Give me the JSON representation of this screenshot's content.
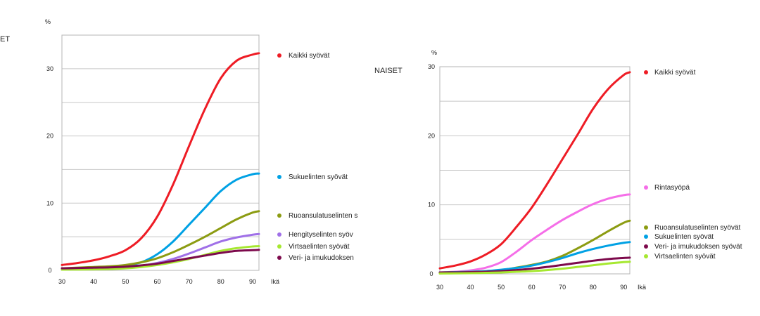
{
  "labels": {
    "left_title": "ET",
    "right_title": "NAISET"
  },
  "chart_data": [
    {
      "type": "line",
      "title": "ET",
      "xlabel": "Ikä",
      "ylabel": "%",
      "xlim": [
        30,
        92
      ],
      "ylim": [
        0,
        35
      ],
      "xticks": [
        "30",
        "40",
        "50",
        "60",
        "70",
        "80",
        "90"
      ],
      "yticks": [
        "0",
        "10",
        "20",
        "30"
      ],
      "grid": true,
      "legend_position": "right",
      "x": [
        30,
        35,
        40,
        45,
        50,
        55,
        60,
        65,
        70,
        75,
        80,
        85,
        90,
        92
      ],
      "series": [
        {
          "name": "Kaikki syövät",
          "color": "#ee1c25",
          "values": [
            0.8,
            1.1,
            1.5,
            2.1,
            3.0,
            4.8,
            8.0,
            12.8,
            18.5,
            24.0,
            28.6,
            31.2,
            32.1,
            32.3
          ]
        },
        {
          "name": "Sukuelinten syövät",
          "color": "#00a1e4",
          "values": [
            0.2,
            0.3,
            0.4,
            0.5,
            0.7,
            1.2,
            2.4,
            4.3,
            6.8,
            9.3,
            11.8,
            13.5,
            14.3,
            14.4
          ]
        },
        {
          "name": "Ruoansulatuselinten s",
          "color": "#8c9c12",
          "values": [
            0.3,
            0.4,
            0.5,
            0.6,
            0.8,
            1.2,
            1.8,
            2.7,
            3.8,
            5.0,
            6.3,
            7.6,
            8.6,
            8.8
          ]
        },
        {
          "name": "Hengityselinten syöv",
          "color": "#a070e8",
          "values": [
            0.1,
            0.15,
            0.2,
            0.3,
            0.45,
            0.7,
            1.1,
            1.7,
            2.5,
            3.4,
            4.3,
            4.9,
            5.3,
            5.4
          ]
        },
        {
          "name": "Virtsaelinten syövät",
          "color": "#a6e830",
          "values": [
            0.1,
            0.12,
            0.15,
            0.2,
            0.3,
            0.5,
            0.8,
            1.2,
            1.7,
            2.3,
            2.9,
            3.3,
            3.55,
            3.6
          ]
        },
        {
          "name": "Veri- ja imukudoksen",
          "color": "#7d0a4c",
          "values": [
            0.3,
            0.35,
            0.4,
            0.45,
            0.55,
            0.75,
            1.0,
            1.4,
            1.8,
            2.2,
            2.6,
            2.9,
            3.0,
            3.05
          ]
        }
      ]
    },
    {
      "type": "line",
      "title": "NAISET",
      "xlabel": "Ikä",
      "ylabel": "%",
      "xlim": [
        30,
        92
      ],
      "ylim": [
        0,
        30
      ],
      "xticks": [
        "30",
        "40",
        "50",
        "60",
        "70",
        "80",
        "90"
      ],
      "yticks": [
        "0",
        "10",
        "20",
        "30"
      ],
      "grid": true,
      "legend_position": "right",
      "x": [
        30,
        35,
        40,
        45,
        50,
        55,
        60,
        65,
        70,
        75,
        80,
        85,
        90,
        92
      ],
      "series": [
        {
          "name": "Kaikki syövät",
          "color": "#ee1c25",
          "values": [
            0.8,
            1.2,
            1.8,
            2.8,
            4.3,
            6.8,
            9.6,
            13.0,
            16.6,
            20.2,
            23.9,
            26.8,
            28.8,
            29.2
          ]
        },
        {
          "name": "Rintasyöpä",
          "color": "#f56ee8",
          "values": [
            0.2,
            0.3,
            0.5,
            0.9,
            1.7,
            3.2,
            4.9,
            6.4,
            7.8,
            9.0,
            10.1,
            10.9,
            11.4,
            11.5
          ]
        },
        {
          "name": "Ruoansulatuselinten syövät",
          "color": "#8c9c12",
          "values": [
            0.2,
            0.25,
            0.3,
            0.4,
            0.55,
            0.9,
            1.3,
            1.8,
            2.6,
            3.7,
            4.9,
            6.2,
            7.4,
            7.7
          ]
        },
        {
          "name": "Sukuelinten syövät",
          "color": "#00a1e4",
          "values": [
            0.2,
            0.25,
            0.3,
            0.4,
            0.6,
            0.85,
            1.2,
            1.7,
            2.3,
            3.0,
            3.6,
            4.1,
            4.5,
            4.6
          ]
        },
        {
          "name": "Veri- ja imukudoksen syövät",
          "color": "#7d0a4c",
          "values": [
            0.2,
            0.22,
            0.25,
            0.3,
            0.4,
            0.55,
            0.75,
            1.0,
            1.3,
            1.6,
            1.9,
            2.15,
            2.3,
            2.35
          ]
        },
        {
          "name": "Virtsaelinten syövät",
          "color": "#a6e830",
          "values": [
            0.05,
            0.07,
            0.1,
            0.15,
            0.2,
            0.3,
            0.4,
            0.55,
            0.75,
            1.0,
            1.25,
            1.5,
            1.7,
            1.75
          ]
        }
      ]
    }
  ]
}
